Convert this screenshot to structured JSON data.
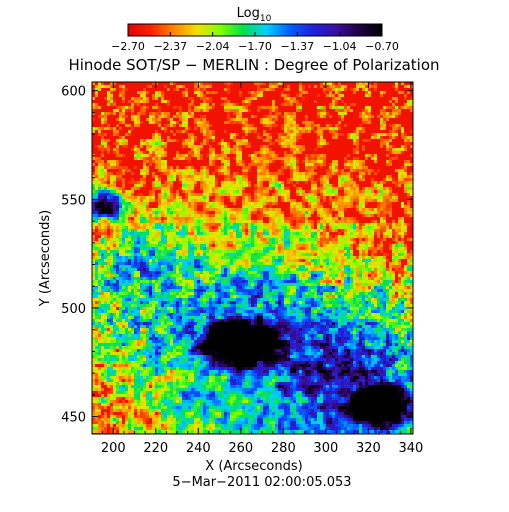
{
  "chart_data": {
    "type": "heatmap",
    "title": "Hinode SOT/SP − MERLIN : Degree of Polarization",
    "xlabel": "X (Arcseconds)",
    "ylabel": "Y (Arcseconds)",
    "xlim": [
      190,
      341
    ],
    "ylim": [
      442,
      604
    ],
    "xticks": [
      200,
      220,
      240,
      260,
      280,
      300,
      320,
      340
    ],
    "yticks": [
      450,
      500,
      550,
      600
    ],
    "colorbar": {
      "label_base": "Log",
      "label_sub": "10",
      "range": [
        -2.7,
        -0.7
      ],
      "ticks": [
        "−2.70",
        "−2.37",
        "−2.04",
        "−1.70",
        "−1.37",
        "−1.04",
        "−0.70"
      ],
      "colormap": [
        "#e00000",
        "#ff2000",
        "#ff8800",
        "#f0e000",
        "#80ff00",
        "#00e050",
        "#00d0ff",
        "#0060ff",
        "#2020e0",
        "#3a10a0",
        "#200040",
        "#000000"
      ]
    },
    "features": [
      {
        "name": "sunspot umbra",
        "x": 260,
        "y": 484,
        "value": -0.8
      },
      {
        "name": "sunspot umbra",
        "x": 326,
        "y": 455,
        "value": -0.85
      },
      {
        "name": "pore",
        "x": 196,
        "y": 548,
        "value": -1.2
      }
    ],
    "timestamp": "5−Mar−2011 02:00:05.053"
  }
}
